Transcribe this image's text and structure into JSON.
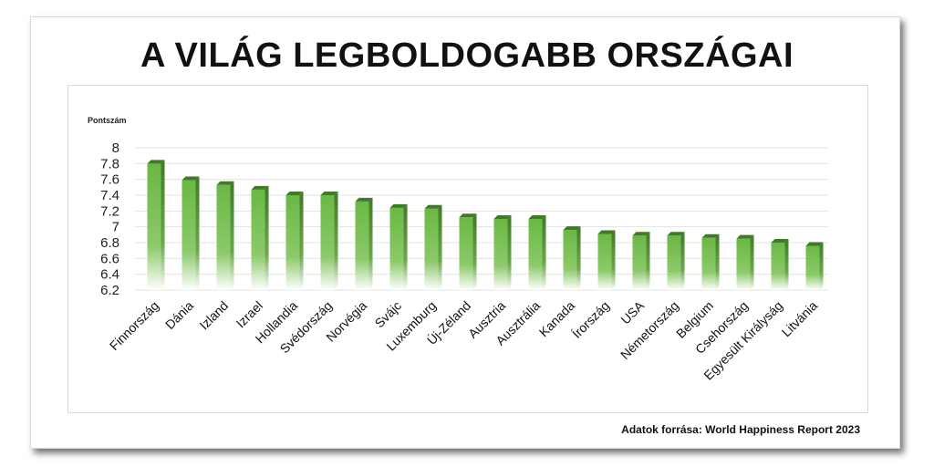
{
  "title": "A VILÁG LEGBOLDOGABB ORSZÁGAI",
  "source": "Adatok forrása: World Happiness Report 2023",
  "colors": {
    "bar_top": "#6aad43",
    "bar_side": "#3f7a26",
    "bar_front": "#7cc04f"
  },
  "chart_data": {
    "type": "bar",
    "title": "A VILÁG LEGBOLDOGABB ORSZÁGAI",
    "xlabel": "",
    "ylabel": "Pontszám",
    "ylim": [
      6.2,
      8
    ],
    "yticks": [
      "8",
      "7.8",
      "7.6",
      "7.4",
      "7.2",
      "7",
      "6.8",
      "6.6",
      "6.4",
      "6.2"
    ],
    "grid": true,
    "categories": [
      "Finnország",
      "Dánia",
      "Izland",
      "Izrael",
      "Hollandia",
      "Svédország",
      "Norvégia",
      "Svájc",
      "Luxemburg",
      "Új-Zéland",
      "Ausztria",
      "Ausztrália",
      "Kanada",
      "Írország",
      "USA",
      "Németország",
      "Belgium",
      "Csehország",
      "Egyesült Királyság",
      "Litvánia"
    ],
    "values": [
      7.8,
      7.59,
      7.53,
      7.47,
      7.4,
      7.4,
      7.32,
      7.24,
      7.23,
      7.12,
      7.1,
      7.1,
      6.96,
      6.91,
      6.89,
      6.89,
      6.86,
      6.85,
      6.8,
      6.76
    ]
  }
}
